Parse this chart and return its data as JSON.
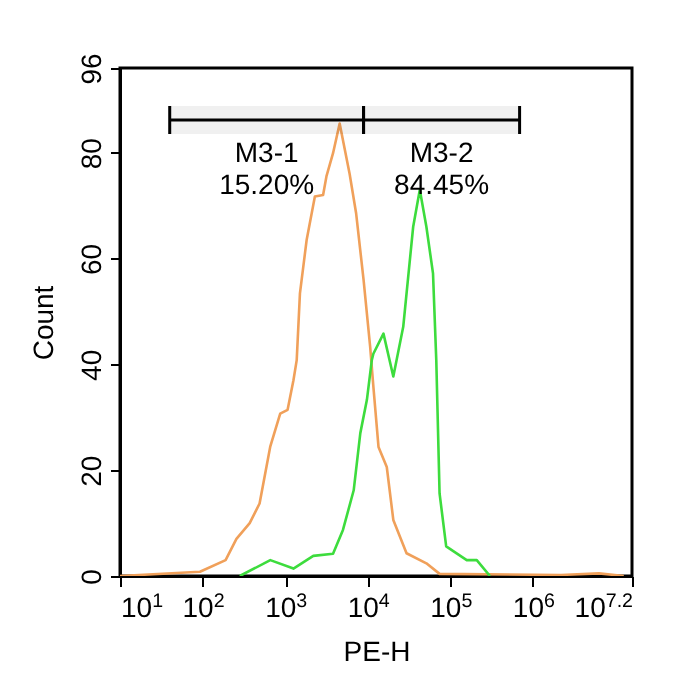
{
  "chart_data": {
    "type": "line",
    "xlabel": "PE-H",
    "ylabel": "Count",
    "log": "x",
    "xlim": [
      10,
      15848932
    ],
    "xticks": [
      {
        "value": 10,
        "label": "10$^{1}$"
      },
      {
        "value": 100,
        "label": "10$^{2}$"
      },
      {
        "value": 1000,
        "label": "10$^{3}$"
      },
      {
        "value": 10000,
        "label": "10$^{4}$"
      },
      {
        "value": 100000,
        "label": "10$^{5}$"
      },
      {
        "value": 1000000,
        "label": "10$^{6}$"
      },
      {
        "value": 15848932,
        "label": "10$^{7.2}$"
      }
    ],
    "ylim": [
      0,
      96
    ],
    "yticks": [
      0,
      20,
      40,
      60,
      80,
      96
    ],
    "series": [
      {
        "color": "#f0a05a",
        "x": [
          10,
          93,
          190,
          257,
          372,
          490,
          661,
          871,
          1070,
          1260,
          1380,
          1510,
          1820,
          2290,
          2880,
          3160,
          3800,
          4570,
          6030,
          7240,
          8910,
          10700,
          11700,
          13500,
          17000,
          20400,
          29500,
          51300,
          74100,
          2190000,
          6310000,
          12600000
        ],
        "values": [
          0,
          0.8,
          3,
          7,
          10,
          13.7,
          24.5,
          30.7,
          31.4,
          37,
          40.8,
          53.4,
          63.5,
          71.7,
          72,
          75.5,
          79.9,
          85.5,
          76,
          68.5,
          55.9,
          43.3,
          35.8,
          24.4,
          20.6,
          10.6,
          4.3,
          2.4,
          0.4,
          0.2,
          0.5,
          0
        ]
      },
      {
        "color": "#3ddc3d",
        "x": [
          282,
          661,
          1260,
          2190,
          3800,
          5010,
          6760,
          8130,
          9770,
          11200,
          11700,
          15500,
          20400,
          26900,
          35500,
          42700,
          51300,
          61700,
          67600,
          74100,
          89100,
          158000,
          209000,
          302000
        ],
        "values": [
          0,
          3,
          1.4,
          3.8,
          4.2,
          8.7,
          16.2,
          27,
          33.3,
          40.8,
          42,
          45.8,
          37.7,
          47.1,
          66,
          73,
          66,
          57.2,
          40.8,
          15.6,
          5.6,
          3,
          3,
          0
        ]
      }
    ],
    "bands": [
      {
        "axis": "x",
        "from": 40,
        "to": 8900,
        "label": "M3-1\n15.20%",
        "color": "#000000"
      },
      {
        "axis": "x",
        "from": 8900,
        "to": 690000,
        "label": "M3-2\n84.45%",
        "color": "#000000"
      }
    ]
  }
}
